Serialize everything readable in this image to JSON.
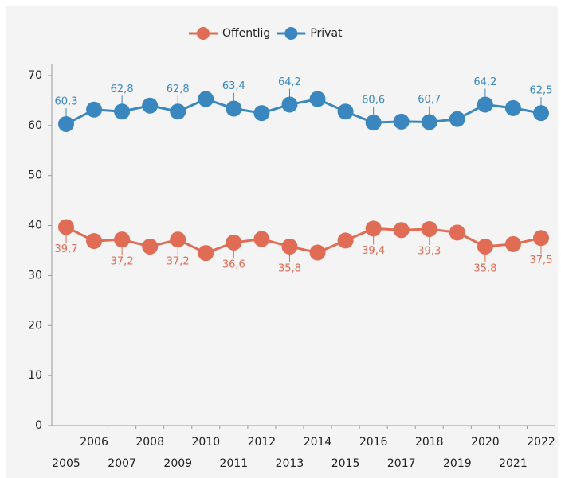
{
  "chart_data": {
    "type": "line",
    "categories": [
      "2005",
      "2006",
      "2007",
      "2008",
      "2009",
      "2010",
      "2011",
      "2012",
      "2013",
      "2014",
      "2015",
      "2016",
      "2017",
      "2018",
      "2019",
      "2020",
      "2021",
      "2022"
    ],
    "series": [
      {
        "name": "Offentlig",
        "color": "#e06c55",
        "values": [
          39.7,
          36.9,
          37.2,
          35.8,
          37.2,
          34.5,
          36.6,
          37.3,
          35.8,
          34.6,
          37.0,
          39.4,
          39.1,
          39.3,
          38.6,
          35.8,
          36.3,
          37.5
        ],
        "value_labels": [
          "39,7",
          null,
          "37,2",
          null,
          "37,2",
          null,
          "36,6",
          null,
          "35,8",
          null,
          null,
          "39,4",
          null,
          "39,3",
          null,
          "35,8",
          null,
          "37,5"
        ]
      },
      {
        "name": "Privat",
        "color": "#3a87c0",
        "values": [
          60.3,
          63.2,
          62.8,
          64.0,
          62.8,
          65.3,
          63.4,
          62.5,
          64.2,
          65.3,
          62.8,
          60.6,
          60.8,
          60.7,
          61.3,
          64.2,
          63.5,
          62.5
        ],
        "value_labels": [
          "60,3",
          null,
          "62,8",
          null,
          "62,8",
          null,
          "63,4",
          null,
          "64,2",
          null,
          null,
          "60,6",
          null,
          "60,7",
          null,
          "64,2",
          null,
          "62,5"
        ]
      }
    ],
    "ylim": [
      0,
      70
    ],
    "yticks": [
      0,
      10,
      20,
      30,
      40,
      50,
      60,
      70
    ],
    "legend": "top"
  }
}
